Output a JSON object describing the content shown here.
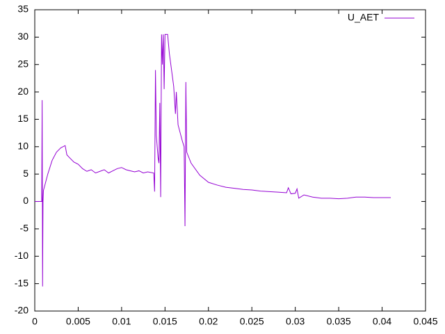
{
  "chart_data": {
    "type": "line",
    "x": [
      0,
      0.0008,
      0.00085,
      0.0009,
      0.00095,
      0.001,
      0.0015,
      0.002,
      0.0025,
      0.003,
      0.0035,
      0.0037,
      0.004,
      0.0045,
      0.005,
      0.0055,
      0.006,
      0.0065,
      0.007,
      0.0075,
      0.008,
      0.0085,
      0.009,
      0.0095,
      0.01,
      0.0105,
      0.011,
      0.0115,
      0.012,
      0.0125,
      0.013,
      0.0137,
      0.0138,
      0.0139,
      0.014,
      0.0142,
      0.0143,
      0.0144,
      0.0145,
      0.0146,
      0.0147,
      0.0148,
      0.0149,
      0.015,
      0.0153,
      0.0155,
      0.016,
      0.0162,
      0.0163,
      0.0165,
      0.017,
      0.0172,
      0.0173,
      0.0174,
      0.0175,
      0.018,
      0.019,
      0.02,
      0.021,
      0.022,
      0.023,
      0.024,
      0.025,
      0.026,
      0.027,
      0.028,
      0.029,
      0.0292,
      0.0295,
      0.03,
      0.0302,
      0.0304,
      0.031,
      0.032,
      0.033,
      0.034,
      0.035,
      0.036,
      0.037,
      0.038,
      0.039,
      0.04,
      0.041
    ],
    "series": [
      {
        "name": "U_AET",
        "color": "#9400d3",
        "values": [
          0,
          0,
          18.5,
          -15.5,
          0,
          2,
          5,
          7.5,
          9,
          9.8,
          10.2,
          8.5,
          8,
          7.2,
          6.8,
          6,
          5.5,
          5.8,
          5.2,
          5.5,
          5.8,
          5.2,
          5.6,
          6,
          6.2,
          5.8,
          5.6,
          5.4,
          5.6,
          5.2,
          5.4,
          5.2,
          1.8,
          24,
          12,
          8,
          7,
          18,
          0.8,
          30.5,
          25,
          30.5,
          20.5,
          30.5,
          30.5,
          27,
          21,
          16,
          20,
          14,
          11,
          10,
          -4.5,
          21.8,
          9,
          7,
          4.8,
          3.5,
          3,
          2.6,
          2.4,
          2.2,
          2.1,
          1.9,
          1.8,
          1.7,
          1.6,
          2.5,
          1.4,
          1.5,
          2.3,
          0.6,
          1.2,
          0.8,
          0.6,
          0.6,
          0.5,
          0.6,
          0.8,
          0.8,
          0.7,
          0.7,
          0.7
        ]
      }
    ],
    "xlim": [
      0,
      0.045
    ],
    "xticks": [
      0,
      0.005,
      0.01,
      0.015,
      0.02,
      0.025,
      0.03,
      0.035,
      0.04,
      0.045
    ],
    "ylim": [
      -20,
      35
    ],
    "yticks": [
      -20,
      -15,
      -10,
      -5,
      0,
      5,
      10,
      15,
      20,
      25,
      30,
      35
    ],
    "legend": "top-right"
  }
}
